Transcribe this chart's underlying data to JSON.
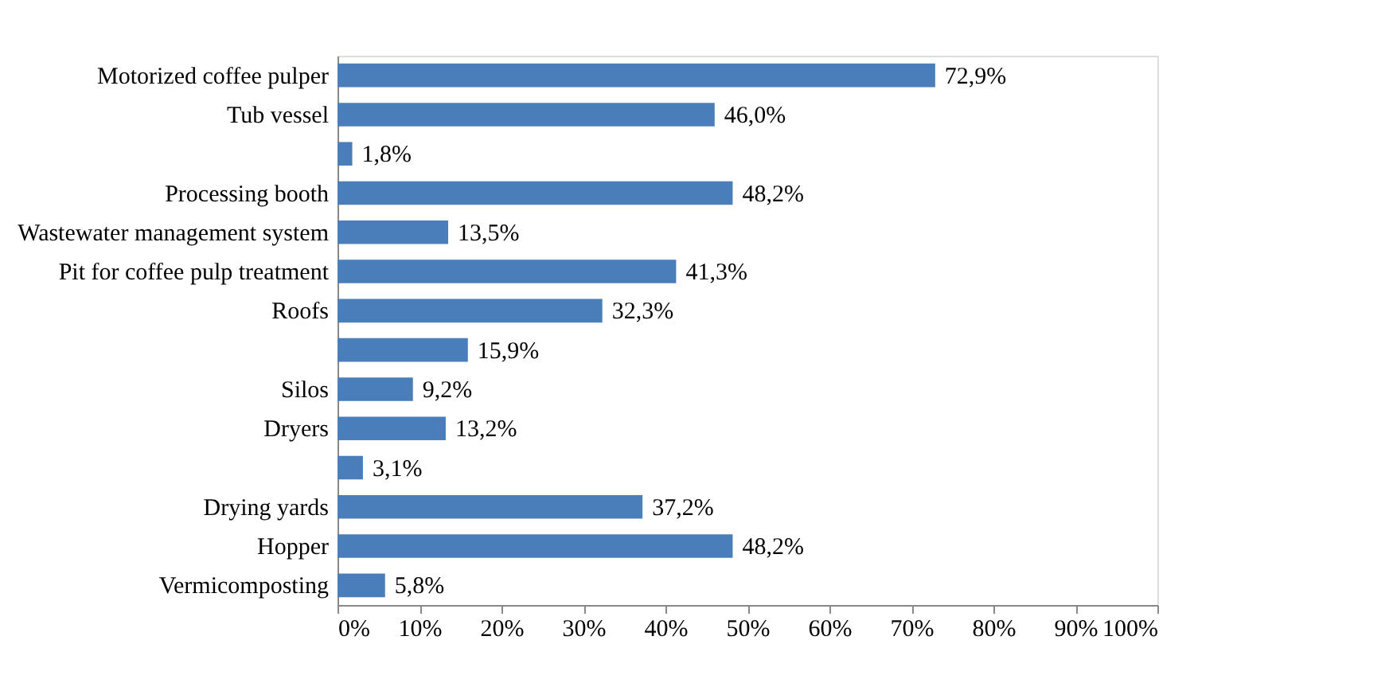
{
  "chart_data": {
    "type": "bar",
    "orientation": "horizontal",
    "categories": [
      "Motorized coffee pulper",
      "Tub vessel",
      null,
      "Processing booth",
      "Wastewater management system",
      "Pit for coffee pulp treatment",
      "Roofs",
      null,
      "Silos",
      "Dryers",
      null,
      "Drying yards",
      "Hopper",
      "Vermicomposting"
    ],
    "values": [
      72.9,
      46.0,
      1.8,
      48.2,
      13.5,
      41.3,
      32.3,
      15.9,
      9.2,
      13.2,
      3.1,
      37.2,
      48.2,
      5.8
    ],
    "value_labels": [
      "72,9%",
      "46,0%",
      "1,8%",
      "48,2%",
      "13,5%",
      "41,3%",
      "32,3%",
      "15,9%",
      "9,2%",
      "13,2%",
      "3,1%",
      "37,2%",
      "48,2%",
      "5,8%"
    ],
    "color": "#4a7ebb",
    "xlim": [
      0,
      100
    ],
    "xticks": [
      {
        "value": 0,
        "label": "0%"
      },
      {
        "value": 10,
        "label": "10%"
      },
      {
        "value": 20,
        "label": "20%"
      },
      {
        "value": 30,
        "label": "30%"
      },
      {
        "value": 40,
        "label": "40%"
      },
      {
        "value": 50,
        "label": "50%"
      },
      {
        "value": 60,
        "label": "60%"
      },
      {
        "value": 70,
        "label": "70%"
      },
      {
        "value": 80,
        "label": "80%"
      },
      {
        "value": 90,
        "label": "90%"
      },
      {
        "value": 100,
        "label": "100%"
      }
    ],
    "grid": false
  }
}
